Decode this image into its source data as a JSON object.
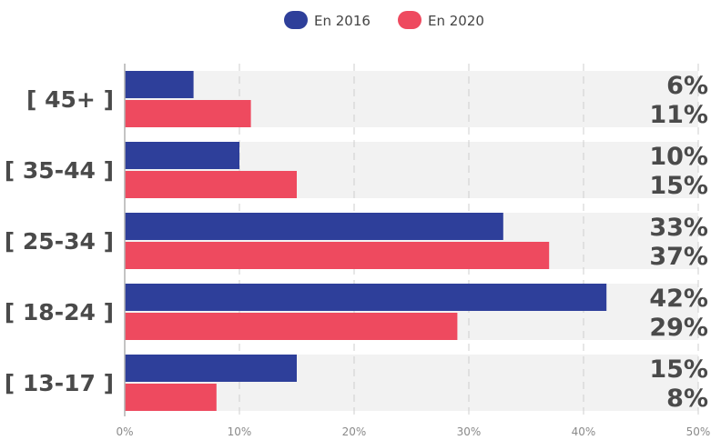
{
  "chart_data": {
    "type": "bar",
    "orientation": "horizontal",
    "title": "",
    "xlabel": "",
    "ylabel": "",
    "categories": [
      "[ 45+ ]",
      "[ 35-44 ]",
      "[ 25-34 ]",
      "[ 18-24 ]",
      "[ 13-17 ]"
    ],
    "series": [
      {
        "name": "En 2016",
        "color": "#2e3f9a",
        "values": [
          6,
          10,
          33,
          42,
          15
        ],
        "labels": [
          "6%",
          "10%",
          "33%",
          "42%",
          "15%"
        ]
      },
      {
        "name": "En 2020",
        "color": "#ee4a5f",
        "values": [
          11,
          15,
          37,
          29,
          8
        ],
        "labels": [
          "11%",
          "15%",
          "37%",
          "29%",
          "8%"
        ]
      }
    ],
    "xlim": [
      0,
      50
    ],
    "xticks": [
      0,
      10,
      20,
      30,
      40,
      50
    ],
    "xtick_labels": [
      "0%",
      "10%",
      "20%",
      "30%",
      "40%",
      "50%"
    ],
    "grid": "vertical dashed",
    "legend": "top-center",
    "colors": {
      "band": "#f2f2f2",
      "grid": "#cfcfcf",
      "axis": "#b0b0b0",
      "text": "#4a4a4a"
    }
  }
}
